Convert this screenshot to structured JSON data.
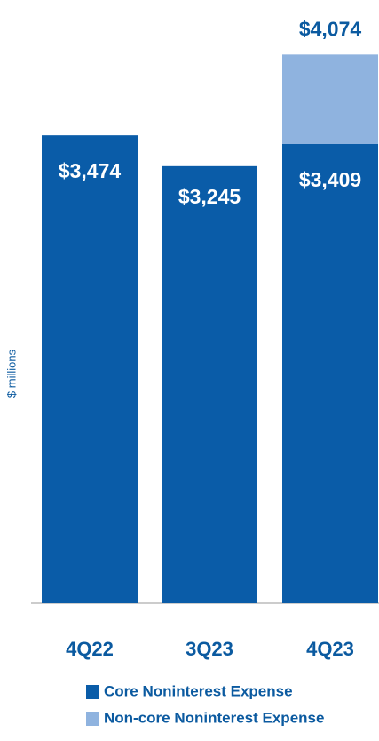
{
  "chart_data": {
    "type": "stacked_bar",
    "y_axis_label": "$ millions",
    "categories": [
      "4Q22",
      "3Q23",
      "4Q23"
    ],
    "series": [
      {
        "name": "Core Noninterest Expense",
        "color": "#0a5ca8",
        "values": [
          3474,
          3245,
          3409
        ],
        "value_labels": [
          "$3,474",
          "$3,245",
          "$3,409"
        ]
      },
      {
        "name": "Non-core Noninterest Expense",
        "color": "#8fb3df",
        "values": [
          null,
          null,
          665
        ]
      }
    ],
    "annotations": [
      {
        "text": "$4,074",
        "value": 4074,
        "category": "4Q23"
      }
    ],
    "ylim": [
      0,
      4400
    ]
  }
}
